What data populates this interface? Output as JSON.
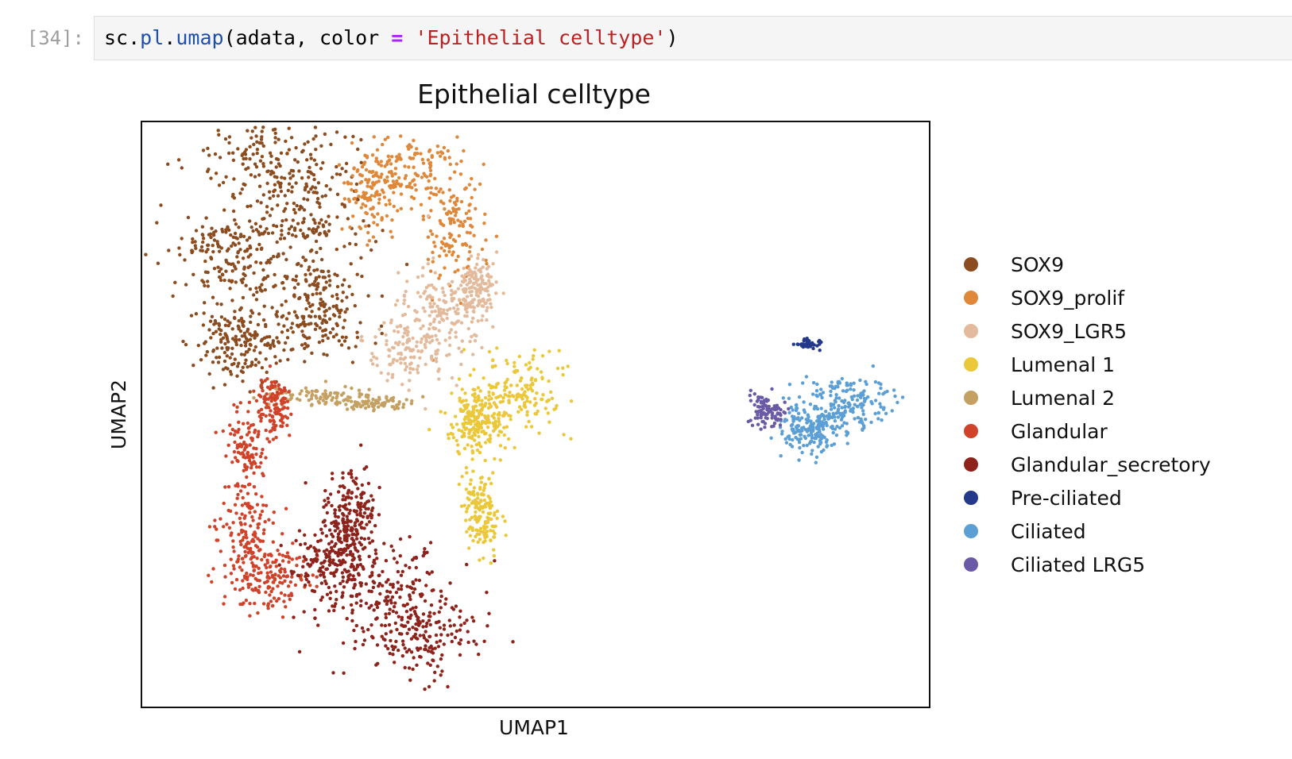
{
  "cell": {
    "prompt": "[34]:",
    "code": {
      "t1": "sc",
      "t2": ".",
      "t3": "pl",
      "t4": ".",
      "t5": "umap",
      "t6": "(adata, color ",
      "t7": "=",
      "t8": " ",
      "t9": "'Epithelial celltype'",
      "t10": ")"
    }
  },
  "chart_data": {
    "type": "scatter",
    "title": "Epithelial celltype",
    "xlabel": "UMAP1",
    "ylabel": "UMAP2",
    "legend_position": "right",
    "grid": false,
    "ticks": false,
    "legend": [
      {
        "name": "SOX9",
        "color": "#8b4c20"
      },
      {
        "name": "SOX9_prolif",
        "color": "#e0883a"
      },
      {
        "name": "SOX9_LGR5",
        "color": "#e3bb9c"
      },
      {
        "name": "Lumenal 1",
        "color": "#ebc83a"
      },
      {
        "name": "Lumenal 2",
        "color": "#c4a062"
      },
      {
        "name": "Glandular",
        "color": "#d0432a"
      },
      {
        "name": "Glandular_secretory",
        "color": "#8e231c"
      },
      {
        "name": "Pre-ciliated",
        "color": "#25398a"
      },
      {
        "name": "Ciliated",
        "color": "#5b9fd5"
      },
      {
        "name": "Ciliated LRG5",
        "color": "#6a5aa6"
      }
    ]
  }
}
